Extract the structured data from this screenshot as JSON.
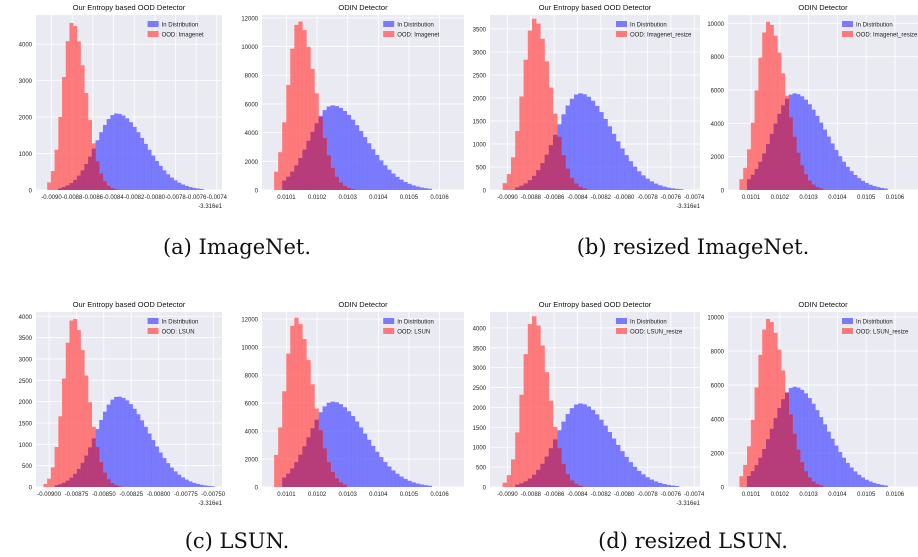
{
  "captions": [
    "(a) ImageNet.",
    "(b) resized ImageNet.",
    "(c) LSUN.",
    "(d) resized LSUN."
  ],
  "colors": {
    "in_dist": "#6666ff",
    "ood": "#ff6666",
    "overlap": "#b33a7a",
    "plot_bg": "#eaeaf2",
    "grid": "#ffffff"
  },
  "chart_data": [
    {
      "type": "bar",
      "subtype": "histogram",
      "title": "Our Entropy based OOD Detector",
      "legend": [
        "In Distribution",
        "OOD: Imagenet"
      ],
      "legend_position": "top-right",
      "grid": true,
      "x_ticks": [
        "-0.0090",
        "-0.0088",
        "-0.0086",
        "-0.0084",
        "-0.0082",
        "-0.0080",
        "-0.0078",
        "-0.0076",
        "-0.0074"
      ],
      "x_offset": "-3.316e1",
      "xlim": [
        -0.00915,
        -0.00735
      ],
      "y_ticks": [
        0,
        1000,
        2000,
        3000,
        4000
      ],
      "ylim": [
        0,
        4800
      ],
      "series": [
        {
          "name": "In Distribution",
          "peak_x": -0.00837,
          "peak_y": 2100,
          "sd_left": 0.0002,
          "sd_right": 0.00028,
          "start_x": -0.00895,
          "end_x": -0.00745
        },
        {
          "name": "OOD: Imagenet",
          "peak_x": -0.0088,
          "peak_y": 4600,
          "sd_left": 9e-05,
          "sd_right": 0.00013,
          "start_x": -0.00905,
          "end_x": -0.0082
        }
      ]
    },
    {
      "type": "bar",
      "subtype": "histogram",
      "title": "ODIN Detector",
      "legend": [
        "In Distribution",
        "OOD: Imagenet"
      ],
      "legend_position": "top-right",
      "grid": true,
      "x_ticks": [
        "0.0101",
        "0.0102",
        "0.0103",
        "0.0104",
        "0.0105",
        "0.0106"
      ],
      "xlim": [
        0.01002,
        0.01068
      ],
      "y_ticks": [
        0,
        2000,
        4000,
        6000,
        8000,
        10000,
        12000
      ],
      "ylim": [
        0,
        12200
      ],
      "series": [
        {
          "name": "In Distribution",
          "peak_x": 0.01025,
          "peak_y": 5900,
          "sd_left": 7.5e-05,
          "sd_right": 0.00011,
          "start_x": 0.01008,
          "end_x": 0.01058
        },
        {
          "name": "OOD: Imagenet",
          "peak_x": 0.01014,
          "peak_y": 11800,
          "sd_left": 3.5e-05,
          "sd_right": 5.5e-05,
          "start_x": 0.01006,
          "end_x": 0.01032
        }
      ]
    },
    {
      "type": "bar",
      "subtype": "histogram",
      "title": "Our Entropy based OOD Detector",
      "legend": [
        "In Distribution",
        "OOD: Imagenet_resize"
      ],
      "legend_position": "top-right",
      "grid": true,
      "x_ticks": [
        "-0.0090",
        "-0.0088",
        "-0.0086",
        "-0.0084",
        "-0.0082",
        "-0.0080",
        "-0.0078",
        "-0.0076",
        "-0.0074"
      ],
      "x_offset": "-3.316e1",
      "xlim": [
        -0.00915,
        -0.00735
      ],
      "y_ticks": [
        0,
        500,
        1000,
        1500,
        2000,
        2500,
        3000,
        3500
      ],
      "ylim": [
        0,
        3800
      ],
      "series": [
        {
          "name": "In Distribution",
          "peak_x": -0.00838,
          "peak_y": 2100,
          "sd_left": 0.0002,
          "sd_right": 0.00028,
          "start_x": -0.00895,
          "end_x": -0.00745
        },
        {
          "name": "OOD: Imagenet_resize",
          "peak_x": -0.00877,
          "peak_y": 3720,
          "sd_left": 0.0001,
          "sd_right": 0.00014,
          "start_x": -0.00905,
          "end_x": -0.00815
        }
      ]
    },
    {
      "type": "bar",
      "subtype": "histogram",
      "title": "ODIN Detector",
      "legend": [
        "In Distribution",
        "OOD: Imagenet_resize"
      ],
      "legend_position": "top-right",
      "grid": true,
      "x_ticks": [
        "0.0101",
        "0.0102",
        "0.0103",
        "0.0104",
        "0.0105",
        "0.0106"
      ],
      "xlim": [
        0.01002,
        0.01068
      ],
      "y_ticks": [
        0,
        2000,
        4000,
        6000,
        8000,
        10000
      ],
      "ylim": [
        0,
        10500
      ],
      "series": [
        {
          "name": "In Distribution",
          "peak_x": 0.01025,
          "peak_y": 5800,
          "sd_left": 7.5e-05,
          "sd_right": 0.00011,
          "start_x": 0.01008,
          "end_x": 0.01058
        },
        {
          "name": "OOD: Imagenet_resize",
          "peak_x": 0.01016,
          "peak_y": 10100,
          "sd_left": 4e-05,
          "sd_right": 6e-05,
          "start_x": 0.01006,
          "end_x": 0.01035
        }
      ]
    },
    {
      "type": "bar",
      "subtype": "histogram",
      "title": "Our Entropy based OOD Detector",
      "legend": [
        "In Distribution",
        "OOD: LSUN"
      ],
      "legend_position": "top-right",
      "grid": true,
      "x_ticks": [
        "-0.00900",
        "-0.00875",
        "-0.00850",
        "-0.00825",
        "-0.00800",
        "-0.00775",
        "-0.00750"
      ],
      "x_offset": "-3.316e1",
      "xlim": [
        -0.00912,
        -0.00742
      ],
      "y_ticks": [
        0,
        500,
        1000,
        1500,
        2000,
        2500,
        3000,
        3500,
        4000
      ],
      "ylim": [
        0,
        4100
      ],
      "series": [
        {
          "name": "In Distribution",
          "peak_x": -0.00837,
          "peak_y": 2120,
          "sd_left": 0.0002,
          "sd_right": 0.00028,
          "start_x": -0.00895,
          "end_x": -0.0075
        },
        {
          "name": "OOD: LSUN",
          "peak_x": -0.00878,
          "peak_y": 3970,
          "sd_left": 9e-05,
          "sd_right": 0.00013,
          "start_x": -0.00905,
          "end_x": -0.0082
        }
      ]
    },
    {
      "type": "bar",
      "subtype": "histogram",
      "title": "ODIN Detector",
      "legend": [
        "In Distribution",
        "OOD: LSUN"
      ],
      "legend_position": "top-right",
      "grid": true,
      "x_ticks": [
        "0.0101",
        "0.0102",
        "0.0103",
        "0.0104",
        "0.0105",
        "0.0106"
      ],
      "xlim": [
        0.01002,
        0.01068
      ],
      "y_ticks": [
        0,
        2000,
        4000,
        6000,
        8000,
        10000,
        12000
      ],
      "ylim": [
        0,
        12500
      ],
      "series": [
        {
          "name": "In Distribution",
          "peak_x": 0.01025,
          "peak_y": 6100,
          "sd_left": 7.5e-05,
          "sd_right": 0.00011,
          "start_x": 0.01008,
          "end_x": 0.01058
        },
        {
          "name": "OOD: LSUN",
          "peak_x": 0.01013,
          "peak_y": 12100,
          "sd_left": 3.5e-05,
          "sd_right": 5.5e-05,
          "start_x": 0.01006,
          "end_x": 0.0103
        }
      ]
    },
    {
      "type": "bar",
      "subtype": "histogram",
      "title": "Our Entropy based OOD Detector",
      "legend": [
        "In Distribution",
        "OOD: LSUN_resize"
      ],
      "legend_position": "top-right",
      "grid": true,
      "x_ticks": [
        "-0.0090",
        "-0.0088",
        "-0.0086",
        "-0.0084",
        "-0.0082",
        "-0.0080",
        "-0.0078",
        "-0.0076",
        "-0.0074"
      ],
      "x_offset": "-3.316e1",
      "xlim": [
        -0.00915,
        -0.00735
      ],
      "y_ticks": [
        0,
        500,
        1000,
        1500,
        2000,
        2500,
        3000,
        3500,
        4000
      ],
      "ylim": [
        0,
        4400
      ],
      "series": [
        {
          "name": "In Distribution",
          "peak_x": -0.00838,
          "peak_y": 2100,
          "sd_left": 0.0002,
          "sd_right": 0.00028,
          "start_x": -0.00895,
          "end_x": -0.00745
        },
        {
          "name": "OOD: LSUN_resize",
          "peak_x": -0.00878,
          "peak_y": 4300,
          "sd_left": 9e-05,
          "sd_right": 0.00013,
          "start_x": -0.00905,
          "end_x": -0.00815
        }
      ]
    },
    {
      "type": "bar",
      "subtype": "histogram",
      "title": "ODIN Detector",
      "legend": [
        "In Distribution",
        "OOD: LSUN_resize"
      ],
      "legend_position": "top-right",
      "grid": true,
      "x_ticks": [
        "0.0101",
        "0.0102",
        "0.0103",
        "0.0104",
        "0.0105",
        "0.0106"
      ],
      "xlim": [
        0.01002,
        0.01068
      ],
      "y_ticks": [
        0,
        2000,
        4000,
        6000,
        8000,
        10000
      ],
      "ylim": [
        0,
        10300
      ],
      "series": [
        {
          "name": "In Distribution",
          "peak_x": 0.01025,
          "peak_y": 5900,
          "sd_left": 7.5e-05,
          "sd_right": 0.00011,
          "start_x": 0.01008,
          "end_x": 0.01058
        },
        {
          "name": "OOD: LSUN_resize",
          "peak_x": 0.01016,
          "peak_y": 9900,
          "sd_left": 4e-05,
          "sd_right": 6e-05,
          "start_x": 0.01006,
          "end_x": 0.01035
        }
      ]
    }
  ]
}
